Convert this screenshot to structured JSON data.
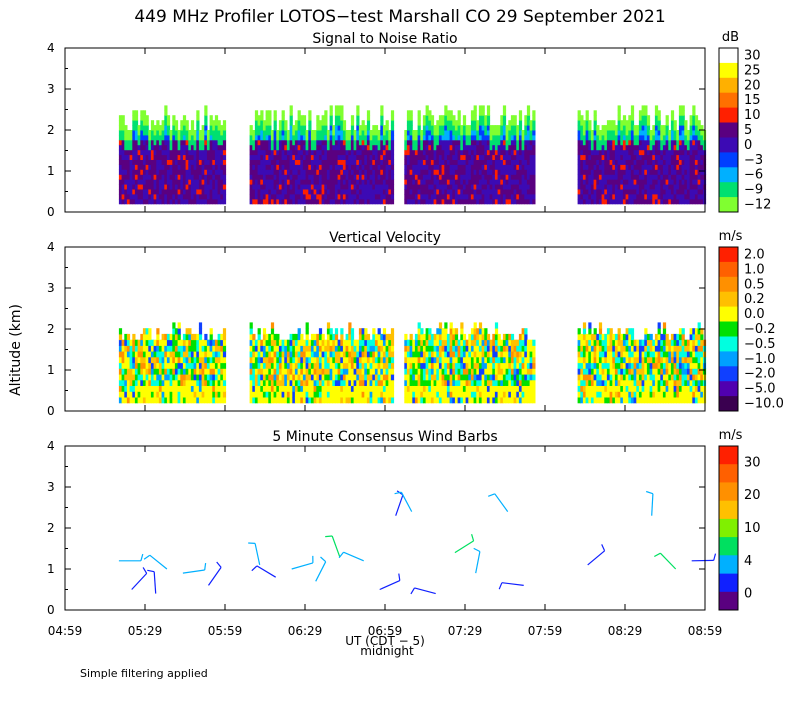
{
  "title": "449 MHz Profiler LOTOS−test Marshall CO 29 September 2021",
  "y_axis_label": "Altitude (km)",
  "x_axis_label": "UT  (CDT − 5)",
  "midnight_label": "midnight",
  "footer": "Simple filtering applied",
  "chart_data": [
    {
      "type": "heatmap",
      "title": "Signal to Noise Ratio",
      "ylabel": "Altitude (km)",
      "xlabel": "UT  (CDT − 5)",
      "ylim": [
        0,
        4
      ],
      "yticks": [
        "0",
        "1",
        "2",
        "3",
        "4"
      ],
      "xticks": [
        "04:59",
        "05:29",
        "05:59",
        "06:29",
        "06:59",
        "07:29",
        "07:59",
        "08:29",
        "08:59"
      ],
      "x_hours": [
        4.983,
        8.983
      ],
      "data_gaps_ut": [
        [
          "05:59",
          "06:08"
        ],
        [
          "07:02",
          "07:06"
        ],
        [
          "07:55",
          "08:11"
        ]
      ],
      "colorbar": {
        "unit": "dB",
        "labels": [
          "30",
          "25",
          "20",
          "15",
          "10",
          "5",
          "0",
          "−3",
          "−6",
          "−9",
          "−12"
        ],
        "colors": [
          "#ffffff",
          "#ffff00",
          "#ffb000",
          "#ff7000",
          "#ff2000",
          "#5a0080",
          "#3c0ab4",
          "#0040ff",
          "#00b0ff",
          "#00e070",
          "#80ff30"
        ]
      }
    },
    {
      "type": "heatmap",
      "title": "Vertical Velocity",
      "ylim": [
        0,
        4
      ],
      "yticks": [
        "0",
        "1",
        "2",
        "3",
        "4"
      ],
      "colorbar": {
        "unit": "m/s",
        "labels": [
          "2.0",
          "1.0",
          "0.5",
          "0.2",
          "0.0",
          "−0.2",
          "−0.5",
          "−1.0",
          "−2.0",
          "−5.0",
          "−10.0"
        ],
        "colors": [
          "#ff2000",
          "#ff6000",
          "#ff9000",
          "#ffc000",
          "#ffff00",
          "#00e000",
          "#00ffe0",
          "#00a0ff",
          "#1040ff",
          "#5000b0",
          "#3a0050"
        ]
      }
    },
    {
      "type": "scatter",
      "title": "5 Minute Consensus Wind Barbs",
      "ylim": [
        0,
        4
      ],
      "yticks": [
        "0",
        "1",
        "2",
        "3",
        "4"
      ],
      "colorbar": {
        "unit": "m/s",
        "labels": [
          "30",
          "20",
          "10",
          "4",
          "0"
        ],
        "colors": [
          "#ff2000",
          "#ff6000",
          "#ff9000",
          "#ffc000",
          "#80f000",
          "#00e060",
          "#00b0ff",
          "#1020ff",
          "#5a0080"
        ]
      },
      "barbs_ut_hours": [
        5.32,
        5.4,
        5.55,
        5.62,
        5.72,
        5.88,
        6.2,
        6.3,
        6.4,
        6.55,
        6.7,
        6.85,
        6.95,
        7.05,
        7.15,
        7.3,
        7.42,
        7.55,
        7.75,
        7.85,
        8.25,
        8.65,
        8.8,
        8.9
      ],
      "barbs_height_km": [
        1.2,
        0.5,
        0.4,
        1.0,
        0.9,
        0.6,
        1.1,
        0.8,
        1.0,
        0.7,
        1.3,
        1.2,
        0.5,
        2.3,
        2.4,
        0.4,
        1.4,
        0.9,
        2.4,
        0.6,
        1.1,
        2.3,
        1.0,
        1.2
      ],
      "barbs_speed_ms": [
        6,
        3,
        2,
        7,
        4,
        2,
        7,
        3,
        5,
        8,
        10,
        9,
        2,
        3,
        4,
        2,
        10,
        9,
        6,
        3,
        2,
        6,
        12,
        3
      ]
    }
  ]
}
